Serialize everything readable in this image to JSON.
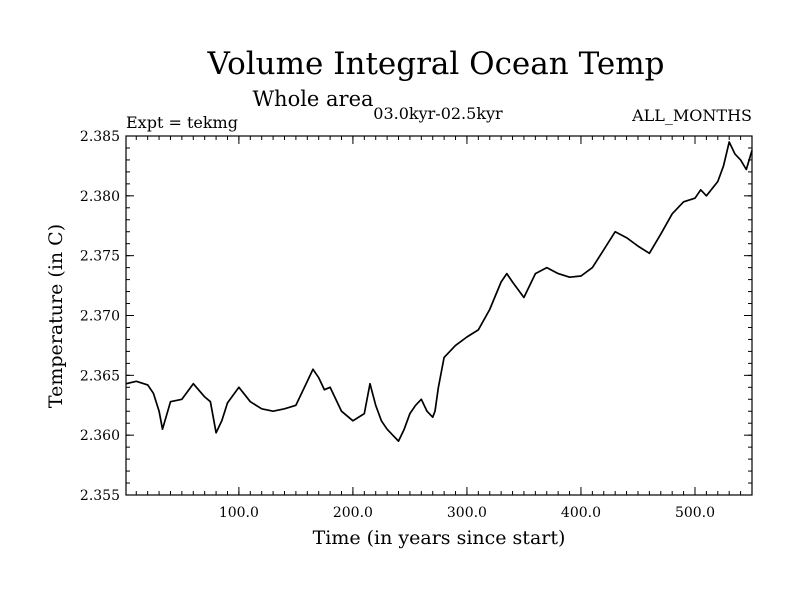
{
  "chart_data": {
    "type": "line",
    "title": "Volume Integral Ocean Temp",
    "subtitle": "Whole area",
    "expt_label": "Expt = tekmg",
    "period_label": "03.0kyr-02.5kyr",
    "months_label": "ALL_MONTHS",
    "xlabel": "Time (in years since start)",
    "ylabel": "Temperature (in C)",
    "xlim": [
      1,
      550
    ],
    "ylim": [
      2.355,
      2.385
    ],
    "xticks": [
      100,
      200,
      300,
      400,
      500
    ],
    "xtick_labels": [
      "100.0",
      "200.0",
      "300.0",
      "400.0",
      "500.0"
    ],
    "yticks": [
      2.355,
      2.36,
      2.365,
      2.37,
      2.375,
      2.38,
      2.385
    ],
    "ytick_labels": [
      "2.355",
      "2.360",
      "2.365",
      "2.370",
      "2.375",
      "2.380",
      "2.385"
    ],
    "series": [
      {
        "name": "Volume integral ocean temperature",
        "color": "#000000",
        "x": [
          1,
          10,
          20,
          25,
          30,
          33,
          40,
          50,
          60,
          70,
          75,
          80,
          85,
          90,
          100,
          110,
          120,
          130,
          140,
          150,
          160,
          165,
          170,
          175,
          180,
          190,
          200,
          210,
          215,
          220,
          225,
          230,
          235,
          240,
          245,
          250,
          255,
          260,
          265,
          270,
          272,
          275,
          280,
          285,
          290,
          300,
          310,
          320,
          330,
          335,
          340,
          350,
          360,
          370,
          380,
          390,
          400,
          410,
          420,
          430,
          440,
          450,
          460,
          470,
          480,
          490,
          500,
          505,
          510,
          520,
          525,
          530,
          535,
          540,
          545,
          550
        ],
        "values": [
          2.3643,
          2.3645,
          2.3642,
          2.3635,
          2.362,
          2.3605,
          2.3628,
          2.363,
          2.3643,
          2.3632,
          2.3628,
          2.3602,
          2.3612,
          2.3627,
          2.364,
          2.3628,
          2.3622,
          2.362,
          2.3622,
          2.3625,
          2.3645,
          2.3655,
          2.3648,
          2.3638,
          2.364,
          2.362,
          2.3612,
          2.3618,
          2.3643,
          2.3625,
          2.3612,
          2.3605,
          2.36,
          2.3595,
          2.3605,
          2.3618,
          2.3625,
          2.363,
          2.362,
          2.3615,
          2.362,
          2.364,
          2.3665,
          2.367,
          2.3675,
          2.3682,
          2.3688,
          2.3705,
          2.3728,
          2.3735,
          2.3728,
          2.3715,
          2.3735,
          2.374,
          2.3735,
          2.3732,
          2.3733,
          2.374,
          2.3755,
          2.377,
          2.3765,
          2.3758,
          2.3752,
          2.3768,
          2.3785,
          2.3795,
          2.3798,
          2.3805,
          2.38,
          2.3812,
          2.3825,
          2.3845,
          2.3835,
          2.383,
          2.3822,
          2.3838
        ]
      }
    ]
  }
}
